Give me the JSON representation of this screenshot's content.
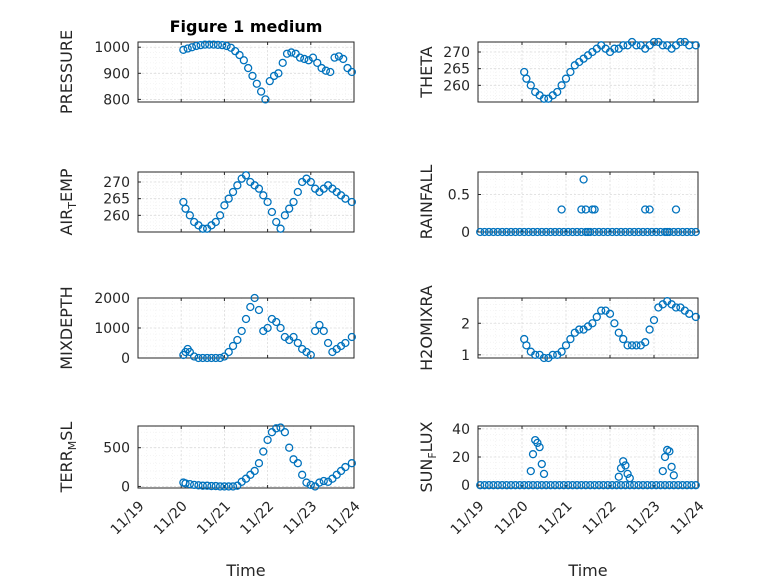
{
  "chart_data": [
    {
      "type": "scatter",
      "title": "Figure 1 medium",
      "ylabel": "PRESSURE",
      "xlabel": "",
      "xlim": [
        0,
        5
      ],
      "ylim": [
        790,
        1020
      ],
      "yticks": [
        800,
        900,
        1000
      ],
      "yticklabels": [
        "800",
        "900",
        "1000"
      ],
      "xticklabels": [],
      "grid": true,
      "marker_color": "#0072BD",
      "series": [
        {
          "x": [
            1.05,
            1.15,
            1.25,
            1.35,
            1.45,
            1.55,
            1.65,
            1.75,
            1.85,
            1.95,
            2.05,
            2.15,
            2.25,
            2.35,
            2.45,
            2.55,
            2.65,
            2.75,
            2.85,
            2.95,
            3.05,
            3.15,
            3.25,
            3.35,
            3.45,
            3.55,
            3.65,
            3.75,
            3.85,
            3.95,
            4.05,
            4.15,
            4.25,
            4.35,
            4.45,
            4.55,
            4.65,
            4.75,
            4.85,
            4.95
          ],
          "y": [
            990,
            995,
            1000,
            1005,
            1008,
            1010,
            1010,
            1010,
            1009,
            1008,
            1005,
            998,
            985,
            970,
            950,
            920,
            890,
            860,
            830,
            800,
            870,
            890,
            900,
            940,
            975,
            980,
            975,
            960,
            955,
            950,
            960,
            940,
            920,
            910,
            905,
            960,
            965,
            955,
            920,
            905
          ]
        }
      ]
    },
    {
      "type": "scatter",
      "title": "",
      "ylabel": "THETA",
      "xlabel": "",
      "xlim": [
        0,
        5
      ],
      "ylim": [
        255,
        273
      ],
      "yticks": [
        260,
        265,
        270
      ],
      "yticklabels": [
        "260",
        "265",
        "270"
      ],
      "xticklabels": [],
      "grid": true,
      "marker_color": "#0072BD",
      "series": [
        {
          "x": [
            1.05,
            1.1,
            1.2,
            1.3,
            1.4,
            1.5,
            1.6,
            1.7,
            1.8,
            1.9,
            2.0,
            2.1,
            2.2,
            2.3,
            2.4,
            2.5,
            2.6,
            2.7,
            2.8,
            2.9,
            3.0,
            3.1,
            3.2,
            3.3,
            3.4,
            3.5,
            3.6,
            3.7,
            3.8,
            3.9,
            4.0,
            4.1,
            4.2,
            4.3,
            4.4,
            4.5,
            4.6,
            4.7,
            4.8,
            4.95
          ],
          "y": [
            264,
            262,
            260,
            258,
            257,
            256,
            256,
            257,
            258,
            260,
            262,
            264,
            266,
            267,
            268,
            269,
            270,
            271,
            272,
            271,
            270,
            271,
            271,
            272,
            272,
            273,
            272,
            272,
            271,
            272,
            273,
            273,
            272,
            272,
            271,
            272,
            273,
            273,
            272,
            272
          ]
        }
      ]
    },
    {
      "type": "scatter",
      "title": "",
      "ylabel": "AIR_TEMP",
      "xlabel": "",
      "xlim": [
        0,
        5
      ],
      "ylim": [
        255,
        273
      ],
      "yticks": [
        260,
        265,
        270
      ],
      "yticklabels": [
        "260",
        "265",
        "270"
      ],
      "xticklabels": [],
      "grid": true,
      "marker_color": "#0072BD",
      "series": [
        {
          "x": [
            1.05,
            1.1,
            1.2,
            1.3,
            1.4,
            1.5,
            1.6,
            1.7,
            1.8,
            1.9,
            2.0,
            2.1,
            2.2,
            2.3,
            2.4,
            2.5,
            2.6,
            2.7,
            2.8,
            2.9,
            3.0,
            3.1,
            3.2,
            3.3,
            3.4,
            3.5,
            3.6,
            3.7,
            3.8,
            3.9,
            4.0,
            4.1,
            4.2,
            4.3,
            4.4,
            4.5,
            4.6,
            4.7,
            4.8,
            4.95
          ],
          "y": [
            264,
            262,
            260,
            258,
            257,
            256,
            256,
            257,
            258,
            260,
            263,
            265,
            267,
            269,
            271,
            272,
            270,
            269,
            268,
            266,
            264,
            261,
            258,
            256,
            260,
            262,
            264,
            267,
            270,
            271,
            270,
            268,
            267,
            268,
            269,
            268,
            267,
            266,
            265,
            264
          ]
        }
      ]
    },
    {
      "type": "scatter",
      "title": "",
      "ylabel": "RAINFALL",
      "xlabel": "",
      "xlim": [
        0,
        5
      ],
      "ylim": [
        0,
        0.8
      ],
      "yticks": [
        0,
        0.5
      ],
      "yticklabels": [
        "0",
        "0.5"
      ],
      "xticklabels": [],
      "grid": true,
      "marker_color": "#0072BD",
      "series": [
        {
          "x": [
            0.05,
            0.15,
            0.25,
            0.35,
            0.45,
            0.55,
            0.65,
            0.75,
            0.85,
            0.95,
            1.05,
            1.15,
            1.25,
            1.35,
            1.45,
            1.55,
            1.65,
            1.75,
            1.85,
            1.95,
            2.05,
            2.15,
            2.25,
            2.35,
            2.45,
            2.55,
            2.65,
            2.75,
            2.85,
            2.95,
            3.05,
            3.15,
            3.25,
            3.35,
            3.45,
            3.55,
            3.65,
            3.75,
            3.85,
            3.95,
            4.05,
            4.15,
            4.25,
            4.35,
            4.45,
            4.55,
            4.65,
            4.75,
            4.85,
            4.95,
            1.9,
            2.35,
            2.4,
            2.45,
            2.5,
            2.6,
            2.65,
            3.8,
            3.9,
            4.5,
            4.3
          ],
          "y": [
            0,
            0,
            0,
            0,
            0,
            0,
            0,
            0,
            0,
            0,
            0,
            0,
            0,
            0,
            0,
            0,
            0,
            0,
            0,
            0,
            0,
            0,
            0,
            0,
            0,
            0,
            0,
            0,
            0,
            0,
            0,
            0,
            0,
            0,
            0,
            0,
            0,
            0,
            0,
            0,
            0,
            0,
            0,
            0,
            0,
            0,
            0,
            0,
            0,
            0,
            0.3,
            0.3,
            0.7,
            0.3,
            0,
            0.3,
            0.3,
            0.3,
            0.3,
            0.3,
            0
          ]
        }
      ]
    },
    {
      "type": "scatter",
      "title": "",
      "ylabel": "MIXDEPTH",
      "xlabel": "",
      "xlim": [
        0,
        5
      ],
      "ylim": [
        0,
        2000
      ],
      "yticks": [
        0,
        1000,
        2000
      ],
      "yticklabels": [
        "0",
        "1000",
        "2000"
      ],
      "xticklabels": [],
      "grid": true,
      "marker_color": "#0072BD",
      "series": [
        {
          "x": [
            1.05,
            1.1,
            1.15,
            1.2,
            1.3,
            1.4,
            1.5,
            1.6,
            1.7,
            1.8,
            1.9,
            2.0,
            2.1,
            2.2,
            2.3,
            2.4,
            2.5,
            2.6,
            2.7,
            2.8,
            2.9,
            3.0,
            3.1,
            3.2,
            3.3,
            3.4,
            3.5,
            3.6,
            3.7,
            3.8,
            3.9,
            4.0,
            4.1,
            4.2,
            4.3,
            4.4,
            4.5,
            4.6,
            4.7,
            4.8,
            4.95
          ],
          "y": [
            100,
            200,
            300,
            200,
            50,
            0,
            0,
            0,
            0,
            0,
            0,
            50,
            200,
            400,
            600,
            900,
            1300,
            1700,
            2000,
            1600,
            900,
            1000,
            1300,
            1200,
            1000,
            700,
            600,
            700,
            500,
            300,
            200,
            100,
            900,
            1100,
            900,
            500,
            200,
            300,
            400,
            500,
            700
          ]
        }
      ]
    },
    {
      "type": "scatter",
      "title": "",
      "ylabel": "H2OMIXRA",
      "xlabel": "",
      "xlim": [
        0,
        5
      ],
      "ylim": [
        0.9,
        2.8
      ],
      "yticks": [
        1,
        2
      ],
      "yticklabels": [
        "1",
        "2"
      ],
      "xticklabels": [],
      "grid": true,
      "marker_color": "#0072BD",
      "series": [
        {
          "x": [
            1.05,
            1.1,
            1.2,
            1.3,
            1.4,
            1.5,
            1.6,
            1.7,
            1.8,
            1.9,
            2.0,
            2.1,
            2.2,
            2.3,
            2.4,
            2.5,
            2.6,
            2.7,
            2.8,
            2.9,
            3.0,
            3.1,
            3.2,
            3.3,
            3.4,
            3.5,
            3.6,
            3.7,
            3.8,
            3.9,
            4.0,
            4.1,
            4.2,
            4.3,
            4.4,
            4.5,
            4.6,
            4.7,
            4.8,
            4.95
          ],
          "y": [
            1.5,
            1.3,
            1.1,
            1.0,
            1.0,
            0.9,
            0.9,
            1.0,
            1.0,
            1.1,
            1.3,
            1.5,
            1.7,
            1.8,
            1.8,
            1.9,
            2.0,
            2.2,
            2.4,
            2.4,
            2.3,
            2.0,
            1.7,
            1.5,
            1.3,
            1.3,
            1.3,
            1.3,
            1.4,
            1.8,
            2.1,
            2.5,
            2.6,
            2.7,
            2.6,
            2.5,
            2.5,
            2.4,
            2.3,
            2.2
          ]
        }
      ]
    },
    {
      "type": "scatter",
      "title": "",
      "ylabel": "TERR_MSL",
      "xlabel": "Time",
      "xlim": [
        0,
        5
      ],
      "ylim": [
        -20,
        780
      ],
      "yticks": [
        0,
        500
      ],
      "yticklabels": [
        "0",
        "500"
      ],
      "xticklabels": [
        "11/19",
        "11/20",
        "11/21",
        "11/22",
        "11/23",
        "11/24"
      ],
      "grid": true,
      "marker_color": "#0072BD",
      "series": [
        {
          "x": [
            1.05,
            1.1,
            1.2,
            1.3,
            1.4,
            1.5,
            1.6,
            1.7,
            1.8,
            1.9,
            2.0,
            2.1,
            2.2,
            2.3,
            2.4,
            2.5,
            2.6,
            2.7,
            2.8,
            2.9,
            3.0,
            3.1,
            3.2,
            3.3,
            3.4,
            3.5,
            3.6,
            3.7,
            3.8,
            3.9,
            4.0,
            4.1,
            4.2,
            4.3,
            4.4,
            4.5,
            4.6,
            4.7,
            4.8,
            4.95
          ],
          "y": [
            50,
            40,
            30,
            20,
            15,
            10,
            10,
            5,
            5,
            0,
            0,
            0,
            0,
            10,
            60,
            100,
            150,
            200,
            300,
            450,
            600,
            700,
            750,
            760,
            700,
            500,
            350,
            300,
            150,
            50,
            20,
            0,
            50,
            70,
            60,
            100,
            150,
            200,
            250,
            300
          ]
        }
      ]
    },
    {
      "type": "scatter",
      "title": "",
      "ylabel": "SUN_FLUX",
      "xlabel": "Time",
      "xlim": [
        0,
        5
      ],
      "ylim": [
        -2,
        42
      ],
      "yticks": [
        0,
        20,
        40
      ],
      "yticklabels": [
        "0",
        "20",
        "40"
      ],
      "xticklabels": [
        "11/19",
        "11/20",
        "11/21",
        "11/22",
        "11/23",
        "11/24"
      ],
      "grid": true,
      "marker_color": "#0072BD",
      "series": [
        {
          "x": [
            0.05,
            0.15,
            0.25,
            0.35,
            0.45,
            0.55,
            0.65,
            0.75,
            0.85,
            0.95,
            1.05,
            1.15,
            1.25,
            1.35,
            1.45,
            1.55,
            1.65,
            1.75,
            1.85,
            1.95,
            2.05,
            2.15,
            2.25,
            2.35,
            2.45,
            2.55,
            2.65,
            2.75,
            2.85,
            2.95,
            3.05,
            3.15,
            3.25,
            3.35,
            3.45,
            3.55,
            3.65,
            3.75,
            3.85,
            3.95,
            4.05,
            4.15,
            4.25,
            4.35,
            4.45,
            4.55,
            4.65,
            4.75,
            4.85,
            4.95,
            1.2,
            1.25,
            1.3,
            1.35,
            1.4,
            1.45,
            1.5,
            3.2,
            3.25,
            3.3,
            3.35,
            3.4,
            3.45,
            4.2,
            4.25,
            4.3,
            4.35,
            4.4,
            4.45
          ],
          "y": [
            0,
            0,
            0,
            0,
            0,
            0,
            0,
            0,
            0,
            0,
            0,
            0,
            0,
            0,
            0,
            0,
            0,
            0,
            0,
            0,
            0,
            0,
            0,
            0,
            0,
            0,
            0,
            0,
            0,
            0,
            0,
            0,
            0,
            0,
            0,
            0,
            0,
            0,
            0,
            0,
            0,
            0,
            0,
            0,
            0,
            0,
            0,
            0,
            0,
            0,
            10,
            22,
            32,
            30,
            27,
            15,
            8,
            6,
            12,
            17,
            14,
            8,
            5,
            10,
            20,
            25,
            24,
            13,
            7
          ]
        }
      ]
    }
  ]
}
